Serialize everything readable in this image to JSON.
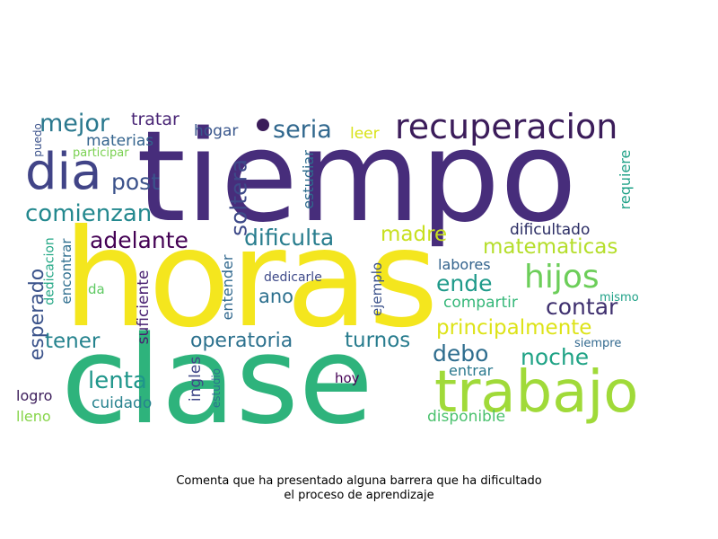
{
  "wordcloud": {
    "words": [
      {
        "text": "tiempo",
        "color": "#472d7b"
      },
      {
        "text": "horas",
        "color": "#f4e61e"
      },
      {
        "text": "clase",
        "color": "#2eb37c"
      },
      {
        "text": "trabajo",
        "color": "#a0da39"
      },
      {
        "text": "recuperacion",
        "color": "#3b1c5a"
      },
      {
        "text": "dia",
        "color": "#414487"
      },
      {
        "text": "mejor",
        "color": "#2a788e"
      },
      {
        "text": "seria",
        "color": "#31688e"
      },
      {
        "text": "hijos",
        "color": "#6cce59"
      },
      {
        "text": "comienzan",
        "color": "#23888e"
      },
      {
        "text": "post",
        "color": "#3b528b"
      },
      {
        "text": "adelante",
        "color": "#440154"
      },
      {
        "text": "dificulta",
        "color": "#287d8e"
      },
      {
        "text": "soltera",
        "color": "#3e4a89"
      },
      {
        "text": "madre",
        "color": "#c8e020"
      },
      {
        "text": "matematicas",
        "color": "#b5de2b"
      },
      {
        "text": "principalmente",
        "color": "#dde318"
      },
      {
        "text": "contar",
        "color": "#3e2f6e"
      },
      {
        "text": "ende",
        "color": "#1f9a8a"
      },
      {
        "text": "noche",
        "color": "#20a386"
      },
      {
        "text": "debo",
        "color": "#2e6d8e"
      },
      {
        "text": "operatoria",
        "color": "#2c718e"
      },
      {
        "text": "turnos",
        "color": "#287c8e"
      },
      {
        "text": "tener",
        "color": "#25838e"
      },
      {
        "text": "lenta",
        "color": "#1f968b"
      },
      {
        "text": "ano",
        "color": "#2d708e"
      },
      {
        "text": "esperado",
        "color": "#3b538b"
      },
      {
        "text": "tratar",
        "color": "#482475"
      },
      {
        "text": "hogar",
        "color": "#39568c"
      },
      {
        "text": "materias",
        "color": "#33638d"
      },
      {
        "text": "leer",
        "color": "#d8e219"
      },
      {
        "text": "estudiar",
        "color": "#2f6c8e"
      },
      {
        "text": "requiere",
        "color": "#1fa187"
      },
      {
        "text": "dificultado",
        "color": "#2b2d64"
      },
      {
        "text": "labores",
        "color": "#33638d"
      },
      {
        "text": "compartir",
        "color": "#35b779"
      },
      {
        "text": "mismo",
        "color": "#1fa187"
      },
      {
        "text": "siempre",
        "color": "#31688e"
      },
      {
        "text": "entrar",
        "color": "#2a788e"
      },
      {
        "text": "disponible",
        "color": "#4ac16d"
      },
      {
        "text": "hoy",
        "color": "#440154"
      },
      {
        "text": "ejemplo",
        "color": "#3b528b"
      },
      {
        "text": "dedicarle",
        "color": "#3e4a89"
      },
      {
        "text": "entender",
        "color": "#31688e"
      },
      {
        "text": "suficiente",
        "color": "#481f70"
      },
      {
        "text": "ingles",
        "color": "#404688"
      },
      {
        "text": "estudio",
        "color": "#2c728e"
      },
      {
        "text": "cuidado",
        "color": "#26828e"
      },
      {
        "text": "da",
        "color": "#5ec962"
      },
      {
        "text": "encontrar",
        "color": "#2e6e8e"
      },
      {
        "text": "dedicacion",
        "color": "#22a785"
      },
      {
        "text": "logro",
        "color": "#3b1c5a"
      },
      {
        "text": "lleno",
        "color": "#86d549"
      },
      {
        "text": "puedo",
        "color": "#3b528b"
      },
      {
        "text": "participar",
        "color": "#7ad151"
      }
    ]
  },
  "caption": {
    "line1": "Comenta que ha presentado alguna barrera que ha dificultado",
    "line2": "el proceso de aprendizaje"
  }
}
